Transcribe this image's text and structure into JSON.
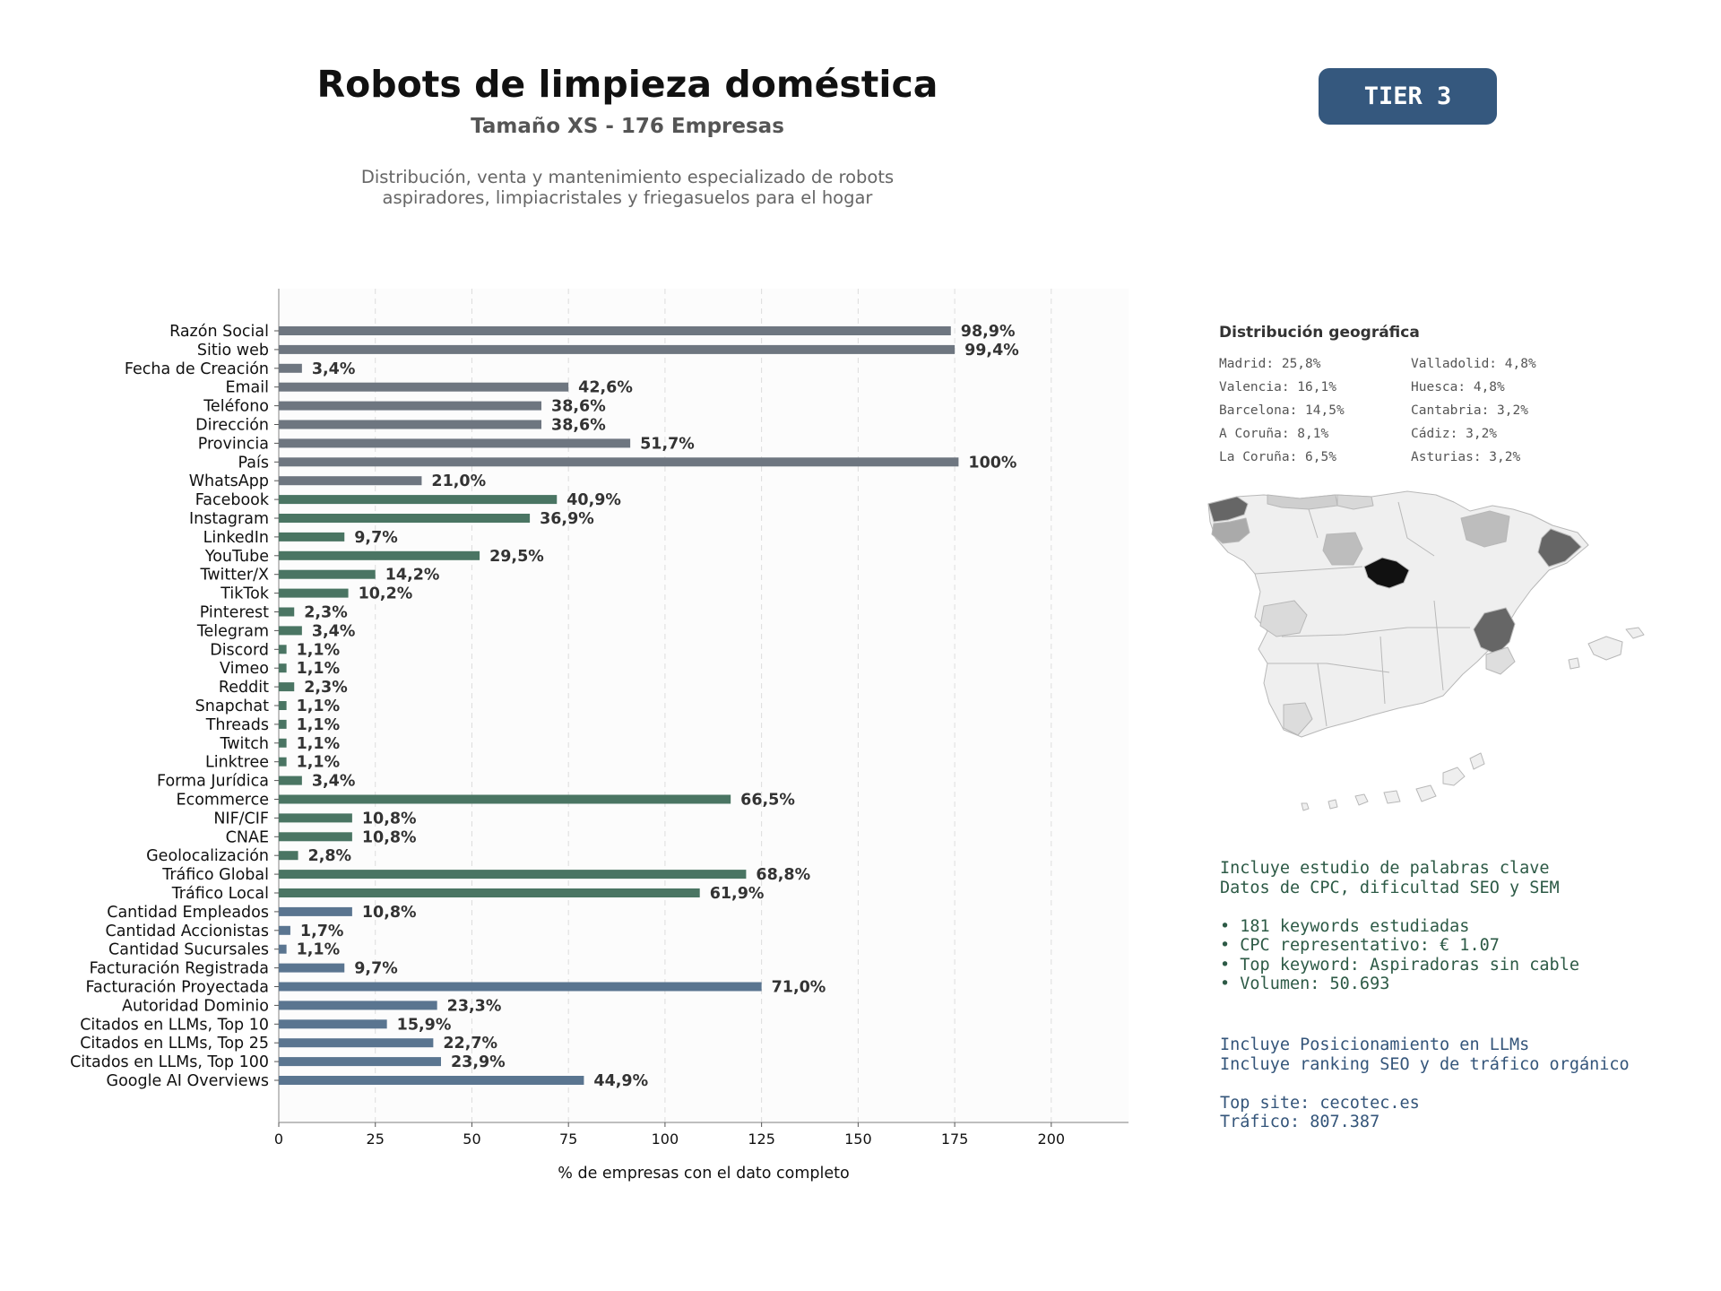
{
  "header": {
    "title": "Robots de limpieza doméstica",
    "subtitle": "Tamaño XS - 176 Empresas",
    "description_line1": "Distribución, venta y mantenimiento especializado de robots",
    "description_line2": "aspiradores, limpiacristales y friegasuelos para el hogar",
    "tier_label": "TIER 3",
    "tier_color": "#35587e"
  },
  "chart_data": {
    "type": "bar",
    "orientation": "horizontal",
    "xlabel": "% de empresas con el dato completo",
    "xlim": [
      0,
      220
    ],
    "xticks": [
      0,
      25,
      50,
      75,
      100,
      125,
      150,
      175,
      200
    ],
    "grid": "vertical dashed",
    "categories": [
      "Razón Social",
      "Sitio web",
      "Fecha de Creación",
      "Email",
      "Teléfono",
      "Dirección",
      "Provincia",
      "País",
      "WhatsApp",
      "Facebook",
      "Instagram",
      "LinkedIn",
      "YouTube",
      "Twitter/X",
      "TikTok",
      "Pinterest",
      "Telegram",
      "Discord",
      "Vimeo",
      "Reddit",
      "Snapchat",
      "Threads",
      "Twitch",
      "Linktree",
      "Forma Jurídica",
      "Ecommerce",
      "NIF/CIF",
      "CNAE",
      "Geolocalización",
      "Tráfico Global",
      "Tráfico Local",
      "Cantidad Empleados",
      "Cantidad Accionistas",
      "Cantidad Sucursales",
      "Facturación Registrada",
      "Facturación Proyectada",
      "Autoridad Dominio",
      "Citados en LLMs, Top 10",
      "Citados en LLMs, Top 25",
      "Citados en LLMs, Top 100",
      "Google AI Overviews"
    ],
    "values": [
      174,
      175,
      6,
      75,
      68,
      68,
      91,
      176,
      37,
      72,
      65,
      17,
      52,
      25,
      18,
      4,
      6,
      2,
      2,
      4,
      2,
      2,
      2,
      2,
      6,
      117,
      19,
      19,
      5,
      121,
      109,
      19,
      3,
      2,
      17,
      125,
      41,
      28,
      40,
      42,
      79
    ],
    "labels": [
      "98,9%",
      "99,4%",
      "3,4%",
      "42,6%",
      "38,6%",
      "38,6%",
      "51,7%",
      "100%",
      "21,0%",
      "40,9%",
      "36,9%",
      "9,7%",
      "29,5%",
      "14,2%",
      "10,2%",
      "2,3%",
      "3,4%",
      "1,1%",
      "1,1%",
      "2,3%",
      "1,1%",
      "1,1%",
      "1,1%",
      "1,1%",
      "3,4%",
      "66,5%",
      "10,8%",
      "10,8%",
      "2,8%",
      "68,8%",
      "61,9%",
      "10,8%",
      "1,7%",
      "1,1%",
      "9,7%",
      "71,0%",
      "23,3%",
      "15,9%",
      "22,7%",
      "23,9%",
      "44,9%"
    ],
    "groups": [
      "gray",
      "gray",
      "gray",
      "gray",
      "gray",
      "gray",
      "gray",
      "gray",
      "gray",
      "green",
      "green",
      "green",
      "green",
      "green",
      "green",
      "green",
      "green",
      "green",
      "green",
      "green",
      "green",
      "green",
      "green",
      "green",
      "green",
      "green",
      "green",
      "green",
      "green",
      "green",
      "green",
      "blue",
      "blue",
      "blue",
      "blue",
      "blue",
      "blue",
      "blue",
      "blue",
      "blue",
      "blue"
    ],
    "colors": {
      "gray": "#6e7680",
      "green": "#4a7563",
      "blue": "#5a7590"
    }
  },
  "geo": {
    "title": "Distribución geográfica",
    "left": [
      "Madrid: 25,8%",
      "Valencia: 16,1%",
      "Barcelona: 14,5%",
      "A Coruña: 8,1%",
      "La Coruña: 6,5%"
    ],
    "right": [
      "Valladolid: 4,8%",
      "Huesca: 4,8%",
      "Cantabria: 3,2%",
      "Cádiz: 3,2%",
      "Asturias: 3,2%"
    ]
  },
  "keywords": {
    "line1": "Incluye estudio de palabras clave",
    "line2": "Datos de CPC, dificultad SEO y SEM",
    "bullets": [
      "• 181 keywords estudiadas",
      "• CPC representativo: € 1.07",
      "• Top keyword: Aspiradoras sin cable",
      "• Volumen: 50.693"
    ]
  },
  "llm": {
    "line1": "Incluye Posicionamiento en LLMs",
    "line2": "Incluye ranking SEO y de tráfico orgánico",
    "top_site": "Top site: cecotec.es",
    "traffic": "Tráfico: 807.387"
  }
}
